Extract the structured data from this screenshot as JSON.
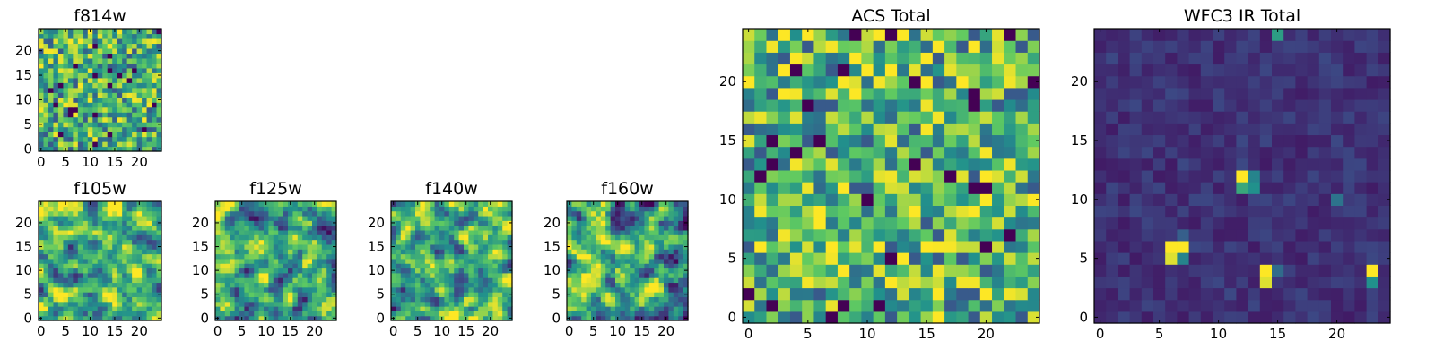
{
  "figure": {
    "type": "heatmap-grid",
    "colormap": [
      "#440154",
      "#3b528b",
      "#21918c",
      "#5ec962",
      "#fde725"
    ]
  },
  "chart_data": [
    {
      "type": "heatmap",
      "title": "f814w",
      "grid": [
        25,
        25
      ],
      "xticks": [
        "0",
        "5",
        "10",
        "15",
        "20"
      ],
      "yticks": [
        "0",
        "5",
        "10",
        "15",
        "20"
      ],
      "xlim": [
        -0.5,
        24.5
      ],
      "ylim": [
        -0.5,
        24.5
      ],
      "style": "noise",
      "seed": 11,
      "bias": 0.62
    },
    {
      "type": "heatmap",
      "title": "f105w",
      "grid": [
        25,
        25
      ],
      "xticks": [
        "0",
        "5",
        "10",
        "15",
        "20"
      ],
      "yticks": [
        "0",
        "5",
        "10",
        "15",
        "20"
      ],
      "xlim": [
        -0.5,
        24.5
      ],
      "ylim": [
        -0.5,
        24.5
      ],
      "style": "smooth",
      "seed": 23,
      "bias": 0.66
    },
    {
      "type": "heatmap",
      "title": "f125w",
      "grid": [
        25,
        25
      ],
      "xticks": [
        "0",
        "5",
        "10",
        "15",
        "20"
      ],
      "yticks": [
        "0",
        "5",
        "10",
        "15",
        "20"
      ],
      "xlim": [
        -0.5,
        24.5
      ],
      "ylim": [
        -0.5,
        24.5
      ],
      "style": "smooth",
      "seed": 37,
      "bias": 0.58
    },
    {
      "type": "heatmap",
      "title": "f140w",
      "grid": [
        25,
        25
      ],
      "xticks": [
        "0",
        "5",
        "10",
        "15",
        "20"
      ],
      "yticks": [
        "0",
        "5",
        "10",
        "15",
        "20"
      ],
      "xlim": [
        -0.5,
        24.5
      ],
      "ylim": [
        -0.5,
        24.5
      ],
      "style": "smooth",
      "seed": 41,
      "bias": 0.62
    },
    {
      "type": "heatmap",
      "title": "f160w",
      "grid": [
        25,
        25
      ],
      "xticks": [
        "0",
        "5",
        "10",
        "15",
        "20"
      ],
      "yticks": [
        "0",
        "5",
        "10",
        "15",
        "20"
      ],
      "xlim": [
        -0.5,
        24.5
      ],
      "ylim": [
        -0.5,
        24.5
      ],
      "style": "smooth",
      "seed": 53,
      "bias": 0.6
    },
    {
      "type": "heatmap",
      "title": "ACS Total",
      "grid": [
        25,
        25
      ],
      "xticks": [
        "0",
        "5",
        "10",
        "15",
        "20"
      ],
      "yticks": [
        "0",
        "5",
        "10",
        "15",
        "20"
      ],
      "xlim": [
        -0.5,
        24.5
      ],
      "ylim": [
        -0.5,
        24.5
      ],
      "style": "noise",
      "seed": 67,
      "bias": 0.66
    },
    {
      "type": "heatmap",
      "title": "WFC3 IR Total",
      "grid": [
        25,
        25
      ],
      "xticks": [
        "0",
        "5",
        "10",
        "15",
        "20"
      ],
      "yticks": [
        "0",
        "5",
        "10",
        "15",
        "20"
      ],
      "xlim": [
        -0.5,
        24.5
      ],
      "ylim": [
        -0.5,
        24.5
      ],
      "style": "background",
      "seed": 79,
      "bias": 0.08,
      "hot_pixels": [
        {
          "x": 15,
          "y": 24,
          "v": 0.55
        },
        {
          "x": 12,
          "y": 12,
          "v": 1.0
        },
        {
          "x": 13,
          "y": 12,
          "v": 0.45
        },
        {
          "x": 12,
          "y": 11,
          "v": 0.6
        },
        {
          "x": 13,
          "y": 11,
          "v": 0.5
        },
        {
          "x": 20,
          "y": 10,
          "v": 0.38
        },
        {
          "x": 6,
          "y": 6,
          "v": 1.0
        },
        {
          "x": 7,
          "y": 6,
          "v": 1.0
        },
        {
          "x": 6,
          "y": 5,
          "v": 0.95
        },
        {
          "x": 7,
          "y": 5,
          "v": 0.45
        },
        {
          "x": 14,
          "y": 4,
          "v": 1.0
        },
        {
          "x": 14,
          "y": 3,
          "v": 0.95
        },
        {
          "x": 15,
          "y": 4,
          "v": 0.35
        },
        {
          "x": 23,
          "y": 4,
          "v": 1.0
        },
        {
          "x": 23,
          "y": 3,
          "v": 0.5
        },
        {
          "x": 7,
          "y": 7,
          "v": 0.3
        }
      ]
    }
  ]
}
